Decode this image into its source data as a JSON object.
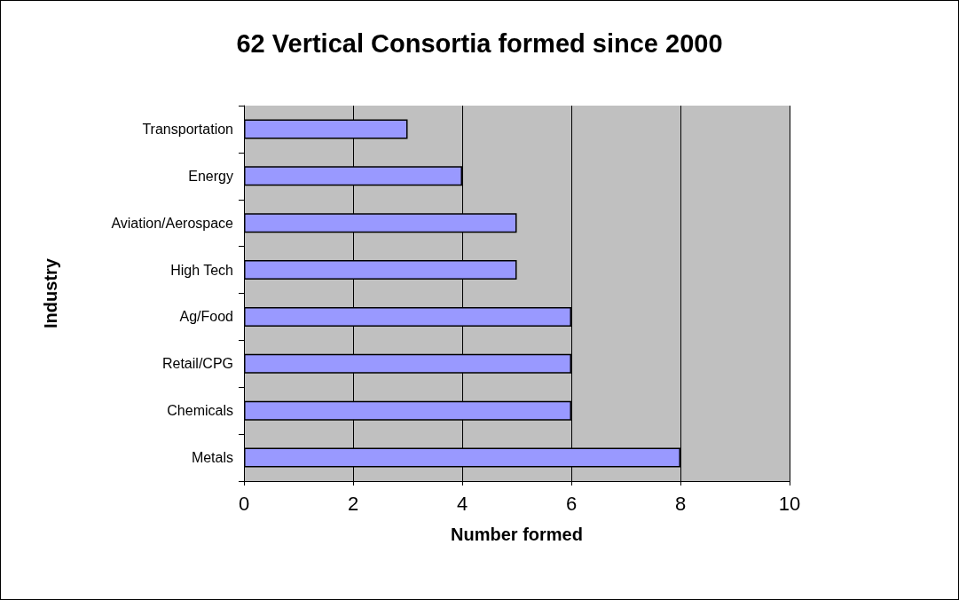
{
  "chart_data": {
    "type": "bar",
    "orientation": "horizontal",
    "title": "62 Vertical Consortia formed since 2000",
    "xlabel": "Number formed",
    "ylabel": "Industry",
    "categories": [
      "Transportation",
      "Energy",
      "Aviation/Aerospace",
      "High Tech",
      "Ag/Food",
      "Retail/CPG",
      "Chemicals",
      "Metals"
    ],
    "values": [
      3,
      4,
      5,
      5,
      6,
      6,
      6,
      8
    ],
    "color": "#9999ff",
    "xlim": [
      0,
      10
    ],
    "xticks": [
      0,
      2,
      4,
      6,
      8,
      10
    ],
    "grid": "x"
  }
}
